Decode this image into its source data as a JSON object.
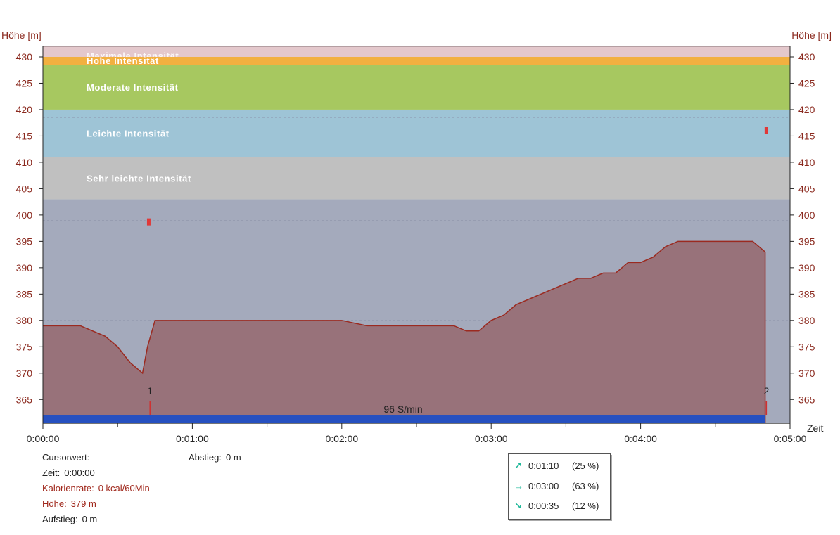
{
  "chart_data": {
    "type": "area",
    "ylabel_left": "Höhe [m]",
    "ylabel_right": "Höhe [m]",
    "xlabel": "Zeit",
    "y_ticks": [
      365,
      370,
      375,
      380,
      385,
      390,
      395,
      400,
      405,
      410,
      415,
      420,
      425,
      430
    ],
    "x_ticks": [
      "0:00:00",
      "0:01:00",
      "0:02:00",
      "0:03:00",
      "0:04:00",
      "0:05:00"
    ],
    "xlim": [
      0,
      300
    ],
    "ylim": [
      360.5,
      432
    ],
    "zones": [
      {
        "name": "Maximale Intensität",
        "from": 430,
        "to": 432,
        "color": "#e4c8cc"
      },
      {
        "name": "Hohe Intensität",
        "from": 428.5,
        "to": 430,
        "color": "#f2b040"
      },
      {
        "name": "Moderate Intensität",
        "from": 420,
        "to": 428.5,
        "color": "#a7c860"
      },
      {
        "name": "Leichte Intensität",
        "from": 411,
        "to": 420,
        "color": "#9ec4d6"
      },
      {
        "name": "Sehr leichte Intensität",
        "from": 403,
        "to": 411,
        "color": "#c0c0c0"
      }
    ],
    "below_zone_color": "#a4aabc",
    "series": [
      {
        "fill": "#98727a",
        "line": "#9b2a20",
        "x": [
          0,
          15,
          20,
          25,
          30,
          35,
          40,
          42,
          45,
          90,
          120,
          130,
          135,
          150,
          160,
          165,
          170,
          175,
          180,
          185,
          190,
          195,
          200,
          205,
          210,
          215,
          220,
          225,
          230,
          235,
          240,
          245,
          250,
          255,
          260,
          265,
          270,
          285,
          290
        ],
        "y": [
          379,
          379,
          378,
          377,
          375,
          372,
          370,
          375,
          380,
          380,
          380,
          379,
          379,
          379,
          379,
          379,
          378,
          378,
          380,
          381,
          383,
          384,
          385,
          386,
          387,
          388,
          388,
          389,
          389,
          391,
          391,
          392,
          394,
          395,
          395,
          395,
          395,
          395,
          393
        ]
      }
    ],
    "markers": [
      {
        "label": "1",
        "x": 43
      },
      {
        "label": "2",
        "x": 290.5
      }
    ],
    "highlight_points": [
      {
        "x": 42.5,
        "y": 398.7
      },
      {
        "x": 290.5,
        "y": 416
      }
    ],
    "dashed_lines_y": [
      380,
      399,
      418.5
    ],
    "cadence_label": "96 S/min",
    "cadence_bar_color": "#2650c0"
  },
  "cursor_info": {
    "title": "Cursorwert:",
    "zeit_label": "Zeit:",
    "zeit_value": "0:00:00",
    "kalorien_label": "Kalorienrate:",
    "kalorien_value": "0 kcal/60Min",
    "hoehe_label": "Höhe:",
    "hoehe_value": "379 m",
    "aufstieg_label": "Aufstieg:",
    "aufstieg_value": "0 m",
    "abstieg_label": "Abstieg:",
    "abstieg_value": "0 m"
  },
  "stats": [
    {
      "icon": "arrow-up-right-icon",
      "glyph": "↗",
      "time": "0:01:10",
      "percent": "(25 %)"
    },
    {
      "icon": "arrow-right-icon",
      "glyph": "→",
      "time": "0:03:00",
      "percent": "(63 %)"
    },
    {
      "icon": "arrow-down-right-icon",
      "glyph": "↘",
      "time": "0:00:35",
      "percent": "(12 %)"
    }
  ]
}
